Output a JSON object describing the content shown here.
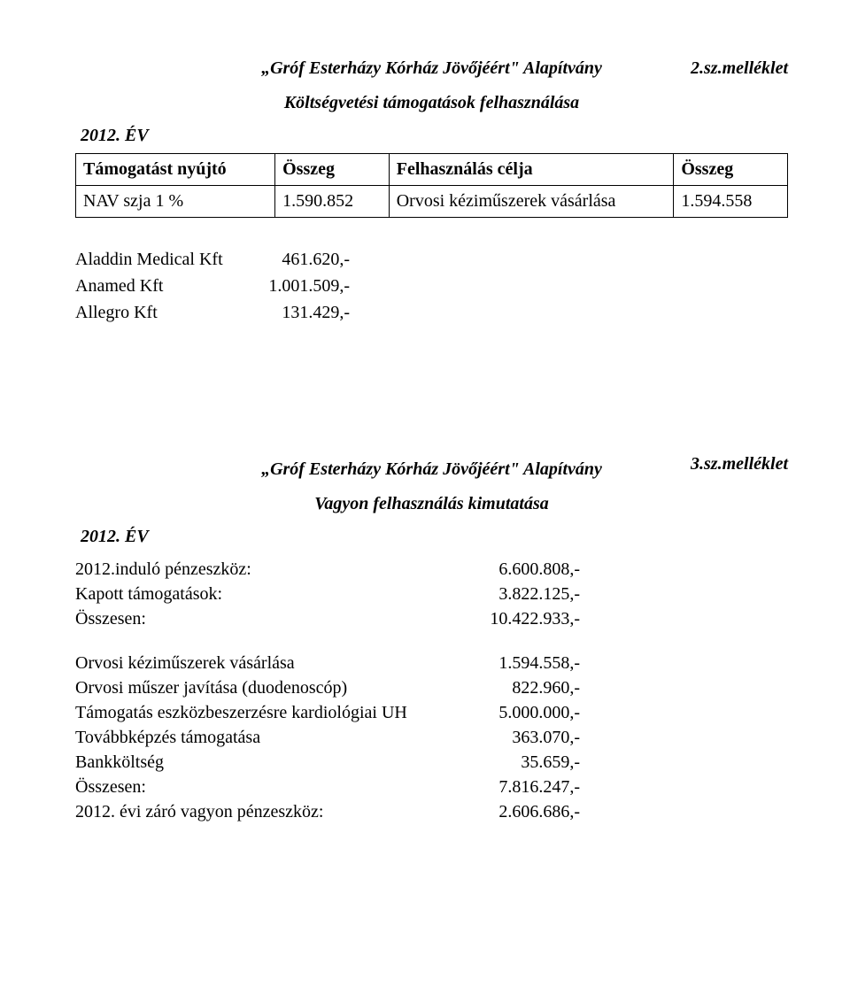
{
  "annex1": "2.sz.melléklet",
  "title1": "„Gróf Esterházy Kórház Jövőjéért\" Alapítvány",
  "subtitle1": "Költségvetési támogatások felhasználása",
  "year1": "2012. ÉV",
  "table": {
    "headers": [
      "Támogatást nyújtó",
      "Összeg",
      "Felhasználás célja",
      "Összeg"
    ],
    "row": [
      "NAV szja 1 %",
      "1.590.852",
      "Orvosi kéziműszerek vásárlása",
      "1.594.558"
    ]
  },
  "vendors": [
    {
      "name": "Aladdin Medical Kft",
      "amount": "461.620,-"
    },
    {
      "name": "Anamed Kft",
      "amount": "1.001.509,-"
    },
    {
      "name": "Allegro Kft",
      "amount": "131.429,-"
    }
  ],
  "annex2": "3.sz.melléklet",
  "title2": "„Gróf Esterházy Kórház Jövőjéért\" Alapítvány",
  "subtitle2": "Vagyon felhasználás kimutatása",
  "year2": "2012. ÉV",
  "block1": [
    {
      "label": "2012.induló pénzeszköz:",
      "value": "6.600.808,-"
    },
    {
      "label": "Kapott támogatások:",
      "value": "3.822.125,-"
    },
    {
      "label": "Összesen:",
      "value": "10.422.933,-"
    }
  ],
  "block2": [
    {
      "label": "Orvosi kéziműszerek  vásárlása",
      "value": "1.594.558,-"
    },
    {
      "label": "Orvosi műszer javítása (duodenoscóp)",
      "value": "822.960,-"
    },
    {
      "label": "Támogatás eszközbeszerzésre kardiológiai UH",
      "value": "5.000.000,-"
    },
    {
      "label": "Továbbképzés támogatása",
      "value": "363.070,-"
    },
    {
      "label": "Bankköltség",
      "value": "35.659,-"
    },
    {
      "label": "Összesen:",
      "value": "7.816.247,-"
    },
    {
      "label": "2012. évi záró vagyon pénzeszköz:",
      "value": "2.606.686,-"
    }
  ],
  "colors": {
    "text": "#000000",
    "background": "#ffffff",
    "border": "#000000"
  },
  "typography": {
    "font_family": "Times New Roman",
    "base_fontsize": 20,
    "annex_style": "bold italic",
    "title_style": "bold italic"
  }
}
